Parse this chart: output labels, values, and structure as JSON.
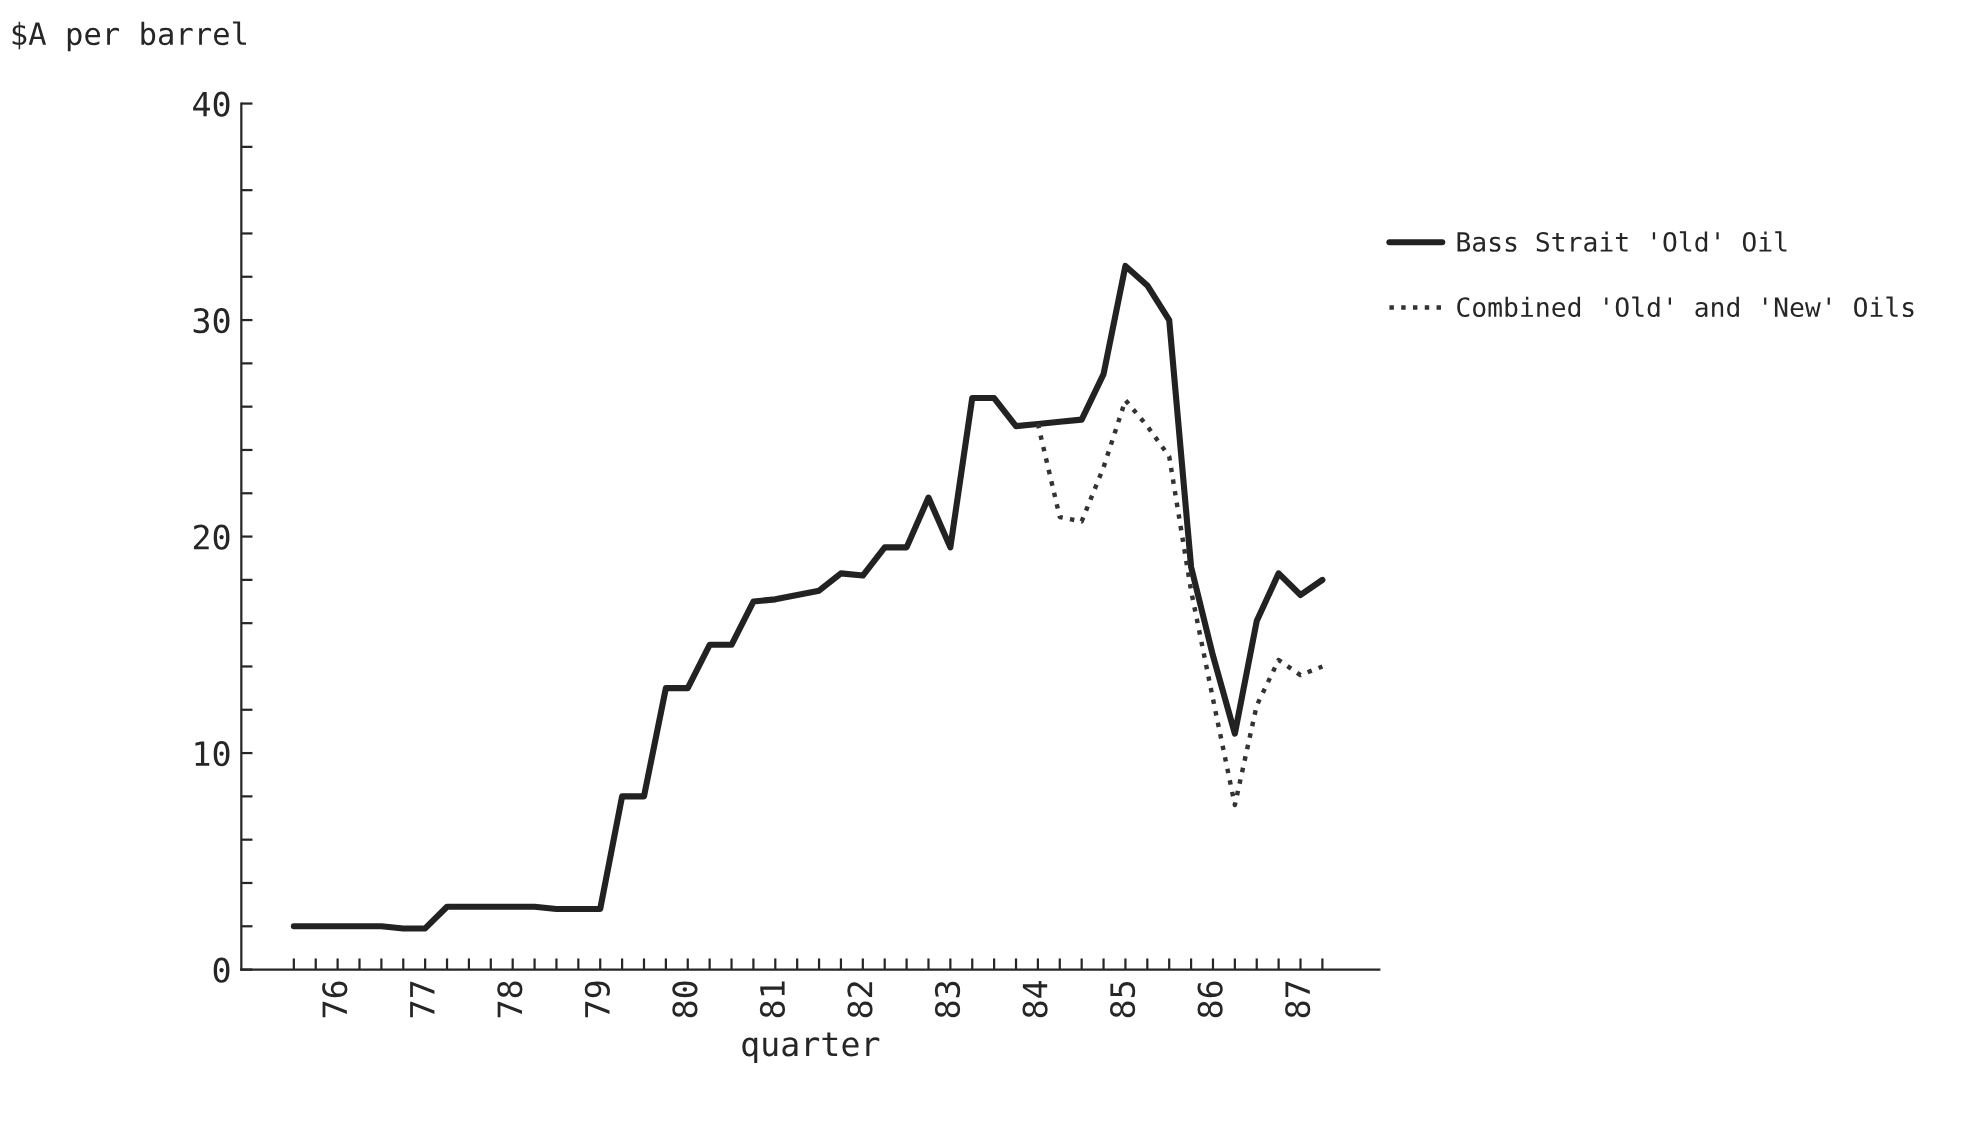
{
  "chart_data": {
    "type": "line",
    "ylabel": "$A per barrel",
    "xlabel": "quarter",
    "x": [
      76,
      76.25,
      76.5,
      76.75,
      77,
      77.25,
      77.5,
      77.75,
      78,
      78.25,
      78.5,
      78.75,
      79,
      79.25,
      79.5,
      79.75,
      80,
      80.25,
      80.5,
      80.75,
      81,
      81.25,
      81.5,
      81.75,
      82,
      82.25,
      82.5,
      82.75,
      83,
      83.25,
      83.5,
      83.75,
      84,
      84.25,
      84.5,
      84.75,
      85,
      85.25,
      85.5,
      85.75,
      86,
      86.25,
      86.5,
      86.75,
      87,
      87.25,
      87.5,
      87.75
    ],
    "series": [
      {
        "name": "Bass Strait 'Old' Oil",
        "color": "#222222",
        "line_style": "solid",
        "values": [
          2.0,
          2.0,
          2.0,
          2.0,
          2.0,
          1.9,
          1.9,
          2.9,
          2.9,
          2.9,
          2.9,
          2.9,
          2.8,
          2.8,
          2.8,
          8.0,
          8.0,
          13.0,
          13.0,
          15.0,
          15.0,
          17.0,
          17.1,
          17.3,
          17.5,
          18.3,
          18.2,
          19.5,
          19.5,
          21.8,
          19.5,
          26.4,
          26.4,
          25.1,
          25.2,
          25.3,
          25.4,
          27.5,
          32.5,
          31.6,
          30.0,
          18.6,
          14.5,
          10.9,
          16.1,
          18.3,
          17.3,
          18.0
        ]
      },
      {
        "name": "Combined 'Old' and 'New' Oils",
        "color": "#333333",
        "line_style": "dotted",
        "values": [
          null,
          null,
          null,
          null,
          null,
          null,
          null,
          null,
          null,
          null,
          null,
          null,
          null,
          null,
          null,
          null,
          null,
          null,
          null,
          null,
          null,
          null,
          null,
          null,
          null,
          null,
          null,
          null,
          null,
          null,
          null,
          null,
          null,
          null,
          25.2,
          20.9,
          20.7,
          23.2,
          26.3,
          25.1,
          23.7,
          17.5,
          12.5,
          7.6,
          12.2,
          14.3,
          13.6,
          14.0
        ]
      }
    ],
    "xlim": [
      75.4,
      88.4
    ],
    "xticks": [
      {
        "value": 76,
        "label": null
      },
      {
        "value": 76.25,
        "label": null
      },
      {
        "value": 76.5,
        "label": "76"
      },
      {
        "value": 76.75,
        "label": null
      },
      {
        "value": 77,
        "label": null
      },
      {
        "value": 77.25,
        "label": null
      },
      {
        "value": 77.5,
        "label": "77"
      },
      {
        "value": 77.75,
        "label": null
      },
      {
        "value": 78,
        "label": null
      },
      {
        "value": 78.25,
        "label": null
      },
      {
        "value": 78.5,
        "label": "78"
      },
      {
        "value": 78.75,
        "label": null
      },
      {
        "value": 79,
        "label": null
      },
      {
        "value": 79.25,
        "label": null
      },
      {
        "value": 79.5,
        "label": "79"
      },
      {
        "value": 79.75,
        "label": null
      },
      {
        "value": 80,
        "label": null
      },
      {
        "value": 80.25,
        "label": null
      },
      {
        "value": 80.5,
        "label": "80"
      },
      {
        "value": 80.75,
        "label": null
      },
      {
        "value": 81,
        "label": null
      },
      {
        "value": 81.25,
        "label": null
      },
      {
        "value": 81.5,
        "label": "81"
      },
      {
        "value": 81.75,
        "label": null
      },
      {
        "value": 82,
        "label": null
      },
      {
        "value": 82.25,
        "label": null
      },
      {
        "value": 82.5,
        "label": "82"
      },
      {
        "value": 82.75,
        "label": null
      },
      {
        "value": 83,
        "label": null
      },
      {
        "value": 83.25,
        "label": null
      },
      {
        "value": 83.5,
        "label": "83"
      },
      {
        "value": 83.75,
        "label": null
      },
      {
        "value": 84,
        "label": null
      },
      {
        "value": 84.25,
        "label": null
      },
      {
        "value": 84.5,
        "label": "84"
      },
      {
        "value": 84.75,
        "label": null
      },
      {
        "value": 85,
        "label": null
      },
      {
        "value": 85.25,
        "label": null
      },
      {
        "value": 85.5,
        "label": "85"
      },
      {
        "value": 85.75,
        "label": null
      },
      {
        "value": 86,
        "label": null
      },
      {
        "value": 86.25,
        "label": null
      },
      {
        "value": 86.5,
        "label": "86"
      },
      {
        "value": 86.75,
        "label": null
      },
      {
        "value": 87,
        "label": null
      },
      {
        "value": 87.25,
        "label": null
      },
      {
        "value": 87.5,
        "label": "87"
      },
      {
        "value": 87.75,
        "label": null
      }
    ],
    "ylim": [
      0,
      40
    ],
    "yticks": [
      0,
      {
        "value": 2,
        "label": null
      },
      {
        "value": 4,
        "label": null
      },
      {
        "value": 6,
        "label": null
      },
      {
        "value": 8,
        "label": null
      },
      10,
      {
        "value": 12,
        "label": null
      },
      {
        "value": 14,
        "label": null
      },
      {
        "value": 16,
        "label": null
      },
      {
        "value": 18,
        "label": null
      },
      20,
      {
        "value": 22,
        "label": null
      },
      {
        "value": 24,
        "label": null
      },
      {
        "value": 26,
        "label": null
      },
      {
        "value": 28,
        "label": null
      },
      30,
      {
        "value": 32,
        "label": null
      },
      {
        "value": 34,
        "label": null
      },
      {
        "value": 36,
        "label": null
      },
      {
        "value": 38,
        "label": null
      },
      40
    ],
    "grid": false,
    "legend": "right"
  }
}
